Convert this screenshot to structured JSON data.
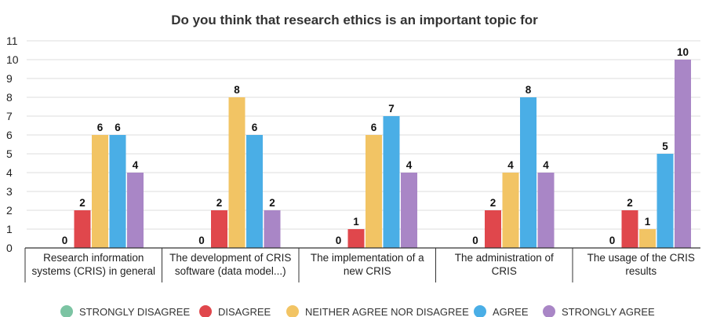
{
  "chart_data": {
    "type": "bar",
    "title": "Do you think that research ethics is an important topic for",
    "xlabel": "",
    "ylabel": "",
    "ylim": [
      0,
      11
    ],
    "yticks": [
      0,
      1,
      2,
      3,
      4,
      5,
      6,
      7,
      8,
      9,
      10,
      11
    ],
    "grid": true,
    "legend_position": "bottom",
    "categories": [
      [
        "Research information",
        "systems (CRIS) in general"
      ],
      [
        "The development of CRIS",
        "software (data model...)"
      ],
      [
        "The implementation of a",
        "new CRIS"
      ],
      [
        "The administration of",
        "CRIS"
      ],
      [
        "The usage of the CRIS",
        "results"
      ]
    ],
    "series": [
      {
        "name": "STRONGLY DISAGREE",
        "color": "#7cc4a3",
        "values": [
          0,
          0,
          0,
          0,
          0
        ]
      },
      {
        "name": "DISAGREE",
        "color": "#e0474c",
        "values": [
          2,
          2,
          1,
          2,
          2
        ]
      },
      {
        "name": "NEITHER AGREE NOR DISAGREE",
        "color": "#f2c464",
        "values": [
          6,
          8,
          6,
          4,
          1
        ]
      },
      {
        "name": "AGREE",
        "color": "#4aaee6",
        "values": [
          6,
          6,
          7,
          8,
          5
        ]
      },
      {
        "name": "STRONGLY AGREE",
        "color": "#a986c6",
        "values": [
          4,
          2,
          4,
          4,
          10
        ]
      }
    ]
  }
}
